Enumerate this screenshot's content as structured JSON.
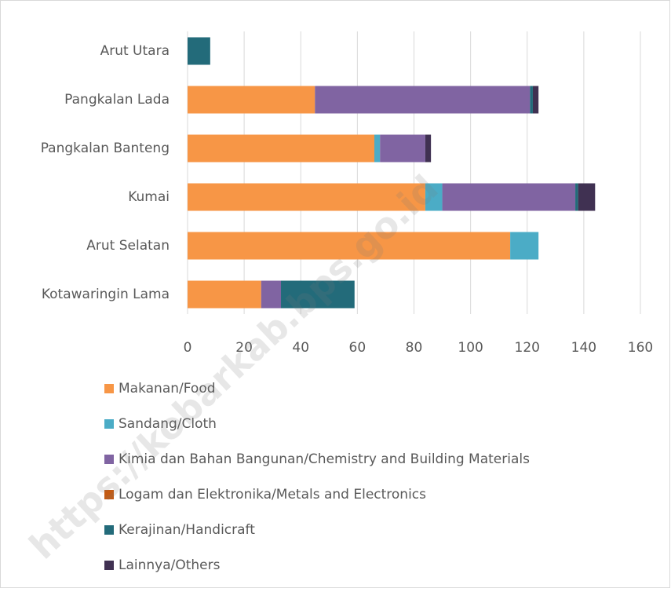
{
  "chart_data": {
    "type": "bar",
    "orientation": "horizontal",
    "stacked": true,
    "categories": [
      "Arut Utara",
      "Pangkalan Lada",
      "Pangkalan Banteng",
      "Kumai",
      "Arut Selatan",
      "Kotawaringin Lama"
    ],
    "series": [
      {
        "name": "Makanan/Food",
        "color": "#f79646",
        "values": [
          0,
          45,
          66,
          84,
          114,
          26
        ]
      },
      {
        "name": "Sandang/Cloth",
        "color": "#4bacc6",
        "values": [
          0,
          0,
          2,
          6,
          10,
          0
        ]
      },
      {
        "name": "Kimia dan Bahan Bangunan/Chemistry and Building Materials",
        "color": "#8064a2",
        "values": [
          0,
          76,
          16,
          47,
          0,
          7
        ]
      },
      {
        "name": "Logam dan Elektronika/Metals and Electronics",
        "color": "#c55a11",
        "values": [
          0,
          0,
          0,
          0,
          0,
          0
        ]
      },
      {
        "name": "Kerajinan/Handicraft",
        "color": "#236b7a",
        "values": [
          8,
          1,
          0,
          1,
          0,
          26
        ]
      },
      {
        "name": "Lainnya/Others",
        "color": "#403152",
        "values": [
          0,
          2,
          2,
          6,
          0,
          0
        ]
      }
    ],
    "xlim": [
      0,
      160
    ],
    "xticks": [
      0,
      20,
      40,
      60,
      80,
      100,
      120,
      140,
      160
    ],
    "grid": true,
    "legend": "bottom",
    "watermark": "https://kobarkab.bps.go.id"
  }
}
